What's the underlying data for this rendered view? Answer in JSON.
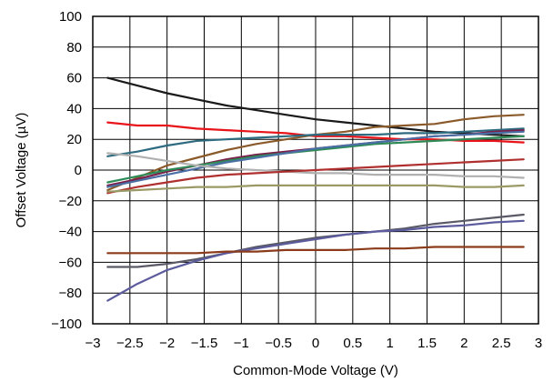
{
  "chart_data": {
    "type": "line",
    "xlabel": "Common-Mode Voltage (V)",
    "ylabel": "Offset Voltage (µV)",
    "xlim": [
      -3,
      3
    ],
    "ylim": [
      -100,
      100
    ],
    "grid": true,
    "x_ticks": [
      -3,
      -2.5,
      -2,
      -1.5,
      -1,
      -0.5,
      0,
      0.5,
      1,
      1.5,
      2,
      2.5,
      3
    ],
    "x_tick_labels": [
      "−3",
      "−2.5",
      "−2",
      "−1.5",
      "−1",
      "−0.5",
      "0",
      "0.5",
      "1",
      "1.5",
      "2",
      "2.5",
      "3"
    ],
    "y_ticks": [
      -100,
      -80,
      -60,
      -40,
      -20,
      0,
      20,
      40,
      60,
      80,
      100
    ],
    "y_tick_labels": [
      "−100",
      "−80",
      "−60",
      "−40",
      "−20",
      "0",
      "20",
      "40",
      "60",
      "80",
      "100"
    ],
    "x": [
      -2.8,
      -2.4,
      -2.0,
      -1.6,
      -1.2,
      -0.8,
      -0.4,
      0.0,
      0.4,
      0.8,
      1.2,
      1.6,
      2.0,
      2.4,
      2.8
    ],
    "series": [
      {
        "color": "#1a1a1a",
        "values": [
          60,
          55,
          50,
          46,
          42,
          39,
          36,
          33,
          31,
          29,
          27,
          25,
          24,
          23,
          22
        ]
      },
      {
        "color": "#e8141a",
        "values": [
          31,
          29,
          29,
          27,
          26,
          25,
          24,
          22,
          22,
          21,
          20,
          20,
          19,
          19,
          18
        ]
      },
      {
        "color": "#8b5a2b",
        "values": [
          -13,
          -5,
          3,
          8,
          13,
          17,
          20,
          23,
          25,
          28,
          29,
          30,
          33,
          35,
          36
        ]
      },
      {
        "color": "#2e6b80",
        "values": [
          9,
          12,
          16,
          19,
          20,
          21,
          22,
          23,
          23,
          23,
          24,
          24,
          25,
          26,
          27
        ]
      },
      {
        "color": "#7a1f4a",
        "values": [
          -10,
          -6,
          -1,
          3,
          7,
          10,
          12,
          14,
          16,
          18,
          20,
          22,
          23,
          25,
          26
        ]
      },
      {
        "color": "#2e8b57",
        "values": [
          -8,
          -4,
          0,
          3,
          6,
          9,
          11,
          13,
          15,
          17,
          18,
          19,
          20,
          21,
          22
        ]
      },
      {
        "color": "#4a6fa5",
        "values": [
          -11,
          -7,
          -3,
          1,
          5,
          8,
          11,
          14,
          16,
          18,
          20,
          22,
          23,
          24,
          25
        ]
      },
      {
        "color": "#b0b0b0",
        "values": [
          11,
          9,
          6,
          3,
          1,
          0,
          -1,
          -2,
          -2,
          -3,
          -3,
          -3,
          -4,
          -4,
          -5
        ]
      },
      {
        "color": "#b03030",
        "values": [
          -15,
          -11,
          -8,
          -5,
          -3,
          -2,
          -1,
          0,
          1,
          2,
          3,
          4,
          5,
          6,
          7
        ]
      },
      {
        "color": "#9a9a66",
        "values": [
          -14,
          -13,
          -12,
          -11,
          -11,
          -10,
          -10,
          -10,
          -10,
          -10,
          -10,
          -10,
          -11,
          -11,
          -10
        ]
      },
      {
        "color": "#5a5a66",
        "values": [
          -63,
          -63,
          -61,
          -58,
          -54,
          -50,
          -47,
          -44,
          -42,
          -40,
          -38,
          -35,
          -33,
          -31,
          -29
        ]
      },
      {
        "color": "#5b5b9e",
        "values": [
          -85,
          -74,
          -65,
          -59,
          -54,
          -51,
          -48,
          -45,
          -42,
          -40,
          -39,
          -37,
          -36,
          -34,
          -33
        ]
      },
      {
        "color": "#8b3a1a",
        "values": [
          -54,
          -54,
          -54,
          -54,
          -53,
          -53,
          -52,
          -52,
          -52,
          -51,
          -51,
          -50,
          -50,
          -50,
          -50
        ]
      }
    ]
  }
}
